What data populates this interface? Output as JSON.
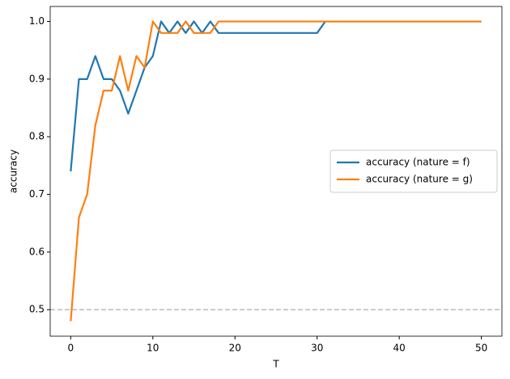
{
  "chart_data": {
    "type": "line",
    "xlabel": "T",
    "ylabel": "accuracy",
    "x": [
      0,
      1,
      2,
      3,
      4,
      5,
      6,
      7,
      8,
      9,
      10,
      11,
      12,
      13,
      14,
      15,
      16,
      17,
      18,
      19,
      20,
      21,
      22,
      23,
      24,
      25,
      26,
      27,
      28,
      29,
      30,
      31,
      32,
      33,
      34,
      35,
      36,
      37,
      38,
      39,
      40,
      41,
      42,
      43,
      44,
      45,
      46,
      47,
      48,
      49,
      50
    ],
    "series": [
      {
        "name": "accuracy (nature = f)",
        "color": "#1f77b4",
        "values": [
          0.74,
          0.9,
          0.9,
          0.94,
          0.9,
          0.9,
          0.88,
          0.84,
          0.88,
          0.92,
          0.94,
          1.0,
          0.98,
          1.0,
          0.98,
          1.0,
          0.98,
          1.0,
          0.98,
          0.98,
          0.98,
          0.98,
          0.98,
          0.98,
          0.98,
          0.98,
          0.98,
          0.98,
          0.98,
          0.98,
          0.98,
          1.0,
          1.0,
          1.0,
          1.0,
          1.0,
          1.0,
          1.0,
          1.0,
          1.0,
          1.0,
          1.0,
          1.0,
          1.0,
          1.0,
          1.0,
          1.0,
          1.0,
          1.0,
          1.0,
          1.0
        ]
      },
      {
        "name": "accuracy (nature = g)",
        "color": "#ff7f0e",
        "values": [
          0.48,
          0.66,
          0.7,
          0.82,
          0.88,
          0.88,
          0.94,
          0.88,
          0.94,
          0.92,
          1.0,
          0.98,
          0.98,
          0.98,
          1.0,
          0.98,
          0.98,
          0.98,
          1.0,
          1.0,
          1.0,
          1.0,
          1.0,
          1.0,
          1.0,
          1.0,
          1.0,
          1.0,
          1.0,
          1.0,
          1.0,
          1.0,
          1.0,
          1.0,
          1.0,
          1.0,
          1.0,
          1.0,
          1.0,
          1.0,
          1.0,
          1.0,
          1.0,
          1.0,
          1.0,
          1.0,
          1.0,
          1.0,
          1.0,
          1.0,
          1.0
        ]
      }
    ],
    "hline": {
      "value": 0.5,
      "color": "#bbbbbb"
    },
    "xlim": [
      -2.5,
      52.5
    ],
    "xticks": [
      0,
      10,
      20,
      30,
      40,
      50
    ],
    "ylim": [
      0.454,
      1.026
    ],
    "yticks": [
      0.5,
      0.6,
      0.7,
      0.8,
      0.9,
      {
        "value": 1,
        "label": "1.0"
      }
    ],
    "legend": "center right"
  }
}
